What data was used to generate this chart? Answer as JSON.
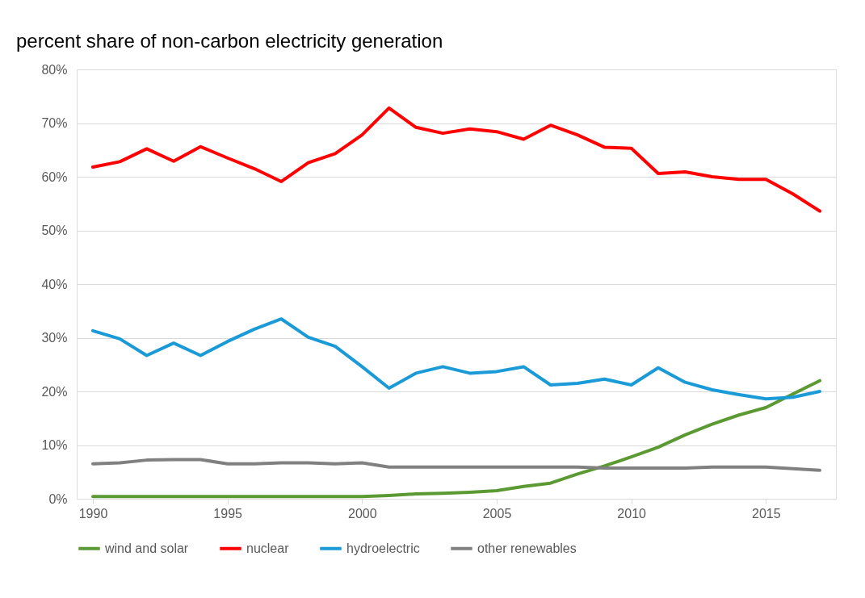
{
  "chart_data": {
    "type": "line",
    "title": "percent share of non-carbon electricity generation",
    "x": [
      1990,
      1991,
      1992,
      1993,
      1994,
      1995,
      1996,
      1997,
      1998,
      1999,
      2000,
      2001,
      2002,
      2003,
      2004,
      2005,
      2006,
      2007,
      2008,
      2009,
      2010,
      2011,
      2012,
      2013,
      2014,
      2015,
      2016,
      2017
    ],
    "series": [
      {
        "name": "wind and solar",
        "color": "#5b9a32",
        "values": [
          0.4,
          0.4,
          0.4,
          0.4,
          0.4,
          0.4,
          0.4,
          0.4,
          0.4,
          0.4,
          0.4,
          0.6,
          0.9,
          1.0,
          1.2,
          1.5,
          2.3,
          2.9,
          4.6,
          6.1,
          7.8,
          9.6,
          11.9,
          13.9,
          15.6,
          17.0,
          19.5,
          22.0
        ]
      },
      {
        "name": "nuclear",
        "color": "#ff0000",
        "values": [
          61.8,
          62.8,
          65.2,
          62.9,
          65.6,
          63.5,
          61.5,
          59.1,
          62.6,
          64.3,
          67.8,
          72.8,
          69.2,
          68.1,
          68.9,
          68.4,
          67.0,
          69.6,
          67.8,
          65.5,
          65.3,
          60.6,
          60.9,
          60.0,
          59.5,
          59.5,
          56.8,
          53.6
        ]
      },
      {
        "name": "hydroelectric",
        "color": "#1a9ad6",
        "values": [
          31.3,
          29.8,
          26.7,
          29.0,
          26.7,
          29.3,
          31.6,
          33.5,
          30.1,
          28.4,
          24.6,
          20.6,
          23.4,
          24.6,
          23.4,
          23.7,
          24.6,
          21.2,
          21.5,
          22.3,
          21.2,
          24.4,
          21.7,
          20.3,
          19.4,
          18.6,
          18.9,
          20.0
        ]
      },
      {
        "name": "other renewables",
        "color": "#808080",
        "values": [
          6.5,
          6.7,
          7.2,
          7.3,
          7.3,
          6.5,
          6.5,
          6.7,
          6.7,
          6.5,
          6.7,
          5.9,
          5.9,
          5.9,
          5.9,
          5.9,
          5.9,
          5.9,
          5.9,
          5.7,
          5.7,
          5.7,
          5.7,
          5.9,
          5.9,
          5.9,
          5.6,
          5.3
        ]
      }
    ],
    "xlim": [
      1989.4,
      2017.6
    ],
    "xticks": [
      1990,
      1995,
      2000,
      2005,
      2010,
      2015
    ],
    "ylim": [
      0,
      80
    ],
    "yticks": [
      {
        "value": 0,
        "label": "0%"
      },
      {
        "value": 10,
        "label": "10%"
      },
      {
        "value": 20,
        "label": "20%"
      },
      {
        "value": 30,
        "label": "30%"
      },
      {
        "value": 40,
        "label": "40%"
      },
      {
        "value": 50,
        "label": "50%"
      },
      {
        "value": 60,
        "label": "60%"
      },
      {
        "value": 70,
        "label": "70%"
      },
      {
        "value": 80,
        "label": "80%"
      }
    ],
    "grid": "y",
    "legend": "bottom",
    "marker": "none",
    "line_style": "solid"
  }
}
